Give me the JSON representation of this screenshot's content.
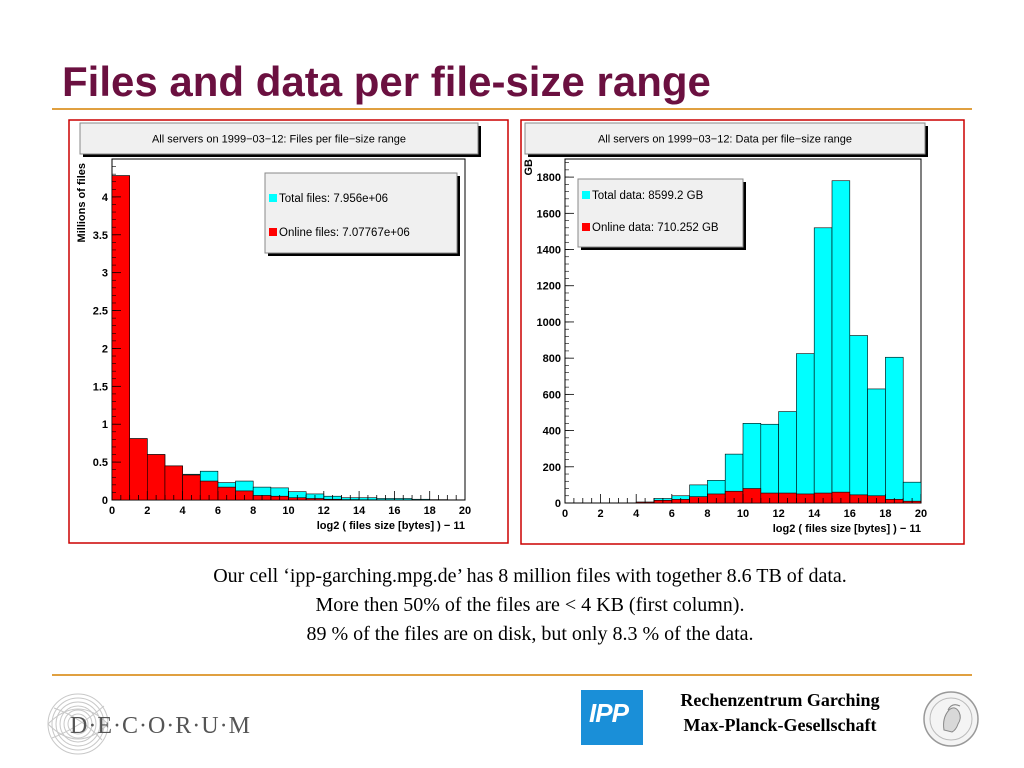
{
  "slide": {
    "title": "Files and data per file-size range",
    "caption_lines": [
      "Our cell ‘ipp-garching.mpg.de’ has 8 million files with together 8.6 TB of data.",
      "More then 50% of the files are < 4 KB (first column).",
      "89 % of the files are on disk, but only 8.3 % of the data."
    ],
    "footer": {
      "decorum": "D·E·C·O·R·U·M",
      "ipp_logo": "IPP",
      "institution_line1": "Rechenzentrum Garching",
      "institution_line2": "Max-Planck-Gesellschaft"
    }
  },
  "colors": {
    "title": "#6b1040",
    "rule": "#e0a040",
    "total": "#00ffff",
    "online": "#ff0000",
    "panel_border": "#cc0000",
    "ipp_blue": "#1a8fd8"
  },
  "chart_data": [
    {
      "type": "bar",
      "title": "All servers on 1999−03−12: Files per file−size range",
      "xlabel": "log2 ( files size [bytes] ) − 11",
      "ylabel": "Millions of files",
      "xlim": [
        0,
        20
      ],
      "ylim": [
        0,
        4.5
      ],
      "xticks": [
        0,
        2,
        4,
        6,
        8,
        10,
        12,
        14,
        16,
        18,
        20
      ],
      "yticks": [
        0,
        0.5,
        1,
        1.5,
        2,
        2.5,
        3,
        3.5,
        4
      ],
      "ytick_labels": [
        "0",
        "0.5",
        "1",
        "1.5",
        "2",
        "2.5",
        "3",
        "3.5",
        "4"
      ],
      "bin_width": 1,
      "legend_placement": "top-right",
      "series": [
        {
          "name": "Total files",
          "legend_value": "7.956e+06",
          "color": "#00ffff",
          "values": [
            4.28,
            0.81,
            0.6,
            0.45,
            0.34,
            0.38,
            0.23,
            0.25,
            0.17,
            0.16,
            0.11,
            0.08,
            0.05,
            0.03,
            0.03,
            0.02,
            0.02,
            0.01,
            0.005,
            0.003
          ]
        },
        {
          "name": "Online files",
          "legend_value": "7.07767e+06",
          "color": "#ff0000",
          "values": [
            4.28,
            0.81,
            0.6,
            0.45,
            0.33,
            0.25,
            0.17,
            0.12,
            0.06,
            0.05,
            0.03,
            0.02,
            0.01,
            0.005,
            0.003,
            0.002,
            0.001,
            0.0,
            0.0,
            0.0
          ]
        }
      ]
    },
    {
      "type": "bar",
      "title": "All servers on 1999−03−12: Data per file−size range",
      "xlabel": "log2 ( files size [bytes] ) − 11",
      "ylabel": "GB",
      "xlim": [
        0,
        20
      ],
      "ylim": [
        0,
        1900
      ],
      "xticks": [
        0,
        2,
        4,
        6,
        8,
        10,
        12,
        14,
        16,
        18,
        20
      ],
      "yticks": [
        0,
        200,
        400,
        600,
        800,
        1000,
        1200,
        1400,
        1600,
        1800
      ],
      "ytick_labels": [
        "0",
        "200",
        "400",
        "600",
        "800",
        "1000",
        "1200",
        "1400",
        "1600",
        "1800"
      ],
      "bin_width": 1,
      "legend_placement": "top-left",
      "series": [
        {
          "name": "Total data",
          "legend_value": "8599.2 GB",
          "color": "#00ffff",
          "values": [
            0,
            0,
            0,
            1,
            5,
            25,
            40,
            100,
            125,
            270,
            440,
            435,
            505,
            825,
            1520,
            1780,
            925,
            630,
            805,
            115
          ]
        },
        {
          "name": "Online data",
          "legend_value": "710.252 GB",
          "color": "#ff0000",
          "values": [
            0,
            0,
            0,
            1,
            5,
            15,
            20,
            35,
            50,
            65,
            80,
            55,
            55,
            50,
            55,
            60,
            45,
            40,
            20,
            10
          ]
        }
      ]
    }
  ]
}
